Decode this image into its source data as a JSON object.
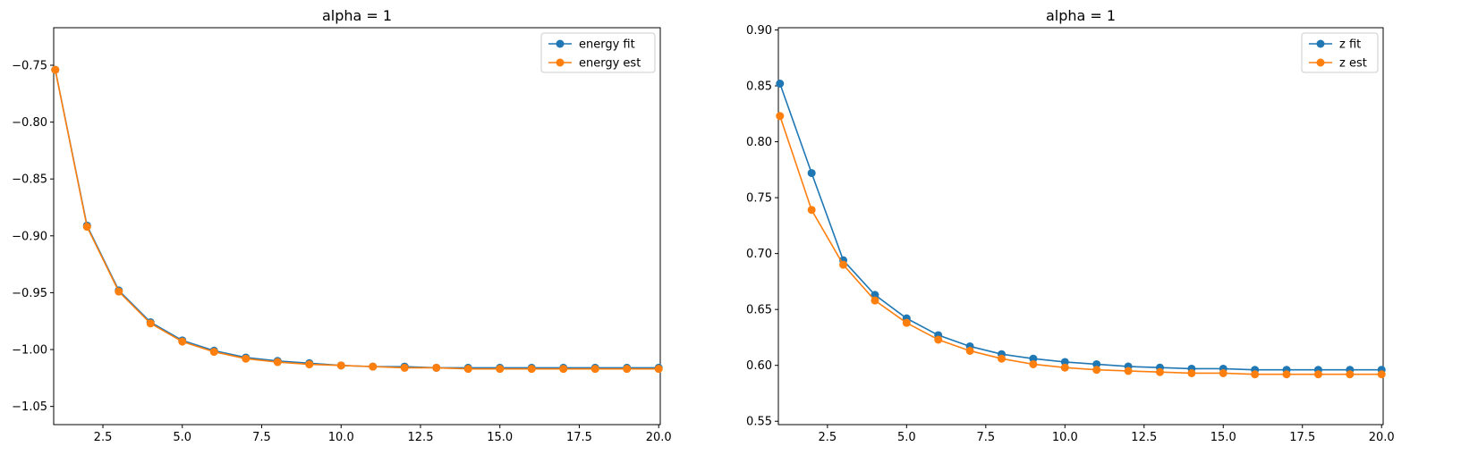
{
  "chart_data": [
    {
      "type": "line",
      "title": "alpha = 1",
      "xlabel": "",
      "ylabel": "",
      "xlim": [
        0.95,
        20.05
      ],
      "ylim": [
        -1.066,
        -0.717
      ],
      "xticks": [
        2.5,
        5.0,
        7.5,
        10.0,
        12.5,
        15.0,
        17.5,
        20.0
      ],
      "xtick_labels": [
        "2.5",
        "5.0",
        "7.5",
        "10.0",
        "12.5",
        "15.0",
        "17.5",
        "20.0"
      ],
      "yticks": [
        -1.05,
        -1.0,
        -0.95,
        -0.9,
        -0.85,
        -0.8,
        -0.75
      ],
      "ytick_labels": [
        "−1.05",
        "−1.00",
        "−0.95",
        "−0.90",
        "−0.85",
        "−0.80",
        "−0.75"
      ],
      "grid": false,
      "legend_position": "top-right",
      "x": [
        1,
        2,
        3,
        4,
        5,
        6,
        7,
        8,
        9,
        10,
        11,
        12,
        13,
        14,
        15,
        16,
        17,
        18,
        19,
        20
      ],
      "series": [
        {
          "name": "energy fit",
          "color": "#1f77b4",
          "values": [
            -0.754,
            -0.891,
            -0.948,
            -0.976,
            -0.992,
            -1.001,
            -1.007,
            -1.01,
            -1.012,
            -1.014,
            -1.015,
            -1.015,
            -1.016,
            -1.016,
            -1.016,
            -1.016,
            -1.016,
            -1.016,
            -1.016,
            -1.016
          ]
        },
        {
          "name": "energy est",
          "color": "#ff7f0e",
          "values": [
            -0.754,
            -0.892,
            -0.949,
            -0.977,
            -0.993,
            -1.002,
            -1.008,
            -1.011,
            -1.013,
            -1.014,
            -1.015,
            -1.016,
            -1.016,
            -1.017,
            -1.017,
            -1.017,
            -1.017,
            -1.017,
            -1.017,
            -1.017
          ]
        }
      ]
    },
    {
      "type": "line",
      "title": "alpha = 1",
      "xlabel": "",
      "ylabel": "",
      "xlim": [
        0.95,
        20.05
      ],
      "ylim": [
        0.547,
        0.902
      ],
      "xticks": [
        2.5,
        5.0,
        7.5,
        10.0,
        12.5,
        15.0,
        17.5,
        20.0
      ],
      "xtick_labels": [
        "2.5",
        "5.0",
        "7.5",
        "10.0",
        "12.5",
        "15.0",
        "17.5",
        "20.0"
      ],
      "yticks": [
        0.55,
        0.6,
        0.65,
        0.7,
        0.75,
        0.8,
        0.85,
        0.9
      ],
      "ytick_labels": [
        "0.55",
        "0.60",
        "0.65",
        "0.70",
        "0.75",
        "0.80",
        "0.85",
        "0.90"
      ],
      "grid": false,
      "legend_position": "top-right",
      "x": [
        1,
        2,
        3,
        4,
        5,
        6,
        7,
        8,
        9,
        10,
        11,
        12,
        13,
        14,
        15,
        16,
        17,
        18,
        19,
        20
      ],
      "series": [
        {
          "name": "z fit",
          "color": "#1f77b4",
          "values": [
            0.852,
            0.772,
            0.694,
            0.663,
            0.642,
            0.627,
            0.617,
            0.61,
            0.606,
            0.603,
            0.601,
            0.599,
            0.598,
            0.597,
            0.597,
            0.596,
            0.596,
            0.596,
            0.596,
            0.596
          ]
        },
        {
          "name": "z est",
          "color": "#ff7f0e",
          "values": [
            0.823,
            0.739,
            0.69,
            0.658,
            0.638,
            0.623,
            0.613,
            0.606,
            0.601,
            0.598,
            0.596,
            0.595,
            0.594,
            0.593,
            0.593,
            0.592,
            0.592,
            0.592,
            0.592,
            0.592
          ]
        }
      ]
    }
  ]
}
